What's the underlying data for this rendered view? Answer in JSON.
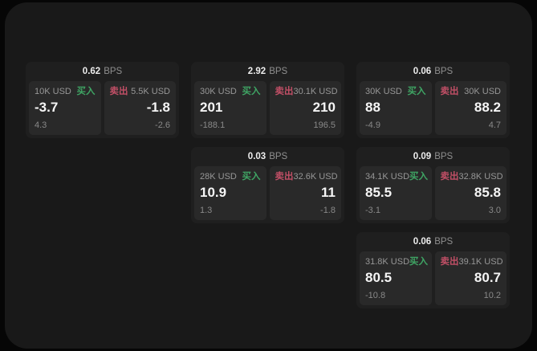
{
  "labels": {
    "bps_unit": "BPS",
    "buy": "买入",
    "sell": "卖出"
  },
  "colors": {
    "buy": "#3fa564",
    "sell": "#c14f66",
    "frame_background": "#191919",
    "card_background": "#1f1f1f",
    "panel_background": "#292929"
  },
  "cards": [
    {
      "bps": "0.62",
      "buy": {
        "amount": "10K USD",
        "value": "-3.7",
        "sub": "4.3"
      },
      "sell": {
        "amount": "5.5K USD",
        "value": "-1.8",
        "sub": "-2.6"
      }
    },
    {
      "bps": "2.92",
      "buy": {
        "amount": "30K USD",
        "value": "201",
        "sub": "-188.1"
      },
      "sell": {
        "amount": "30.1K USD",
        "value": "210",
        "sub": "196.5"
      }
    },
    {
      "bps": "0.06",
      "buy": {
        "amount": "30K USD",
        "value": "88",
        "sub": "-4.9"
      },
      "sell": {
        "amount": "30K USD",
        "value": "88.2",
        "sub": "4.7"
      }
    },
    {
      "bps": "0.03",
      "buy": {
        "amount": "28K USD",
        "value": "10.9",
        "sub": "1.3"
      },
      "sell": {
        "amount": "32.6K USD",
        "value": "11",
        "sub": "-1.8"
      }
    },
    {
      "bps": "0.09",
      "buy": {
        "amount": "34.1K USD",
        "value": "85.5",
        "sub": "-3.1"
      },
      "sell": {
        "amount": "32.8K USD",
        "value": "85.8",
        "sub": "3.0"
      }
    },
    {
      "bps": "0.06",
      "buy": {
        "amount": "31.8K USD",
        "value": "80.5",
        "sub": "-10.8"
      },
      "sell": {
        "amount": "39.1K USD",
        "value": "80.7",
        "sub": "10.2"
      }
    }
  ]
}
